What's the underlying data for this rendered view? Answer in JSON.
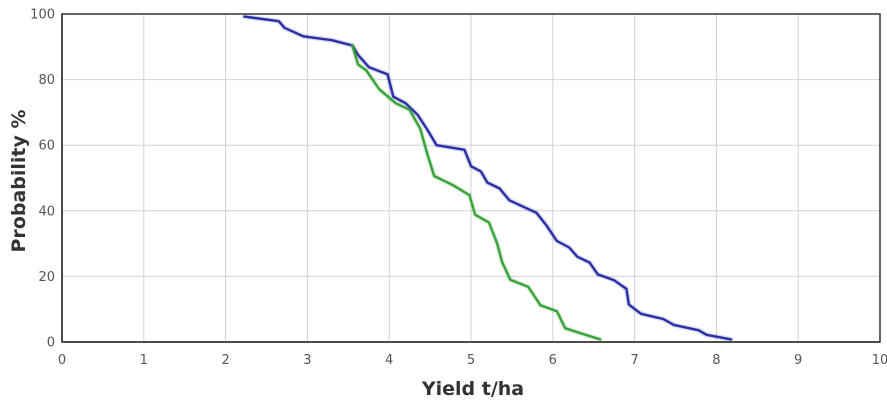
{
  "chart_data": {
    "type": "line",
    "title": "",
    "xlabel": "Yield t/ha",
    "ylabel": "Probability %",
    "xlim": [
      0,
      10
    ],
    "ylim": [
      0,
      100
    ],
    "xticks": [
      0,
      1,
      2,
      3,
      4,
      5,
      6,
      7,
      8,
      9,
      10
    ],
    "yticks": [
      0,
      20,
      40,
      60,
      80,
      100
    ],
    "grid": true,
    "legend": "none",
    "series": [
      {
        "color": "#2b2fa6",
        "points": [
          [
            2.23,
            99.2
          ],
          [
            2.65,
            97.8
          ],
          [
            2.72,
            95.8
          ],
          [
            2.95,
            93.2
          ],
          [
            3.3,
            92.0
          ],
          [
            3.55,
            90.4
          ],
          [
            3.62,
            87.5
          ],
          [
            3.75,
            83.8
          ],
          [
            3.98,
            81.6
          ],
          [
            4.05,
            74.8
          ],
          [
            4.2,
            72.8
          ],
          [
            4.35,
            69.2
          ],
          [
            4.47,
            64.6
          ],
          [
            4.58,
            60.0
          ],
          [
            4.92,
            58.6
          ],
          [
            5.0,
            53.6
          ],
          [
            5.12,
            52.0
          ],
          [
            5.2,
            48.6
          ],
          [
            5.35,
            46.8
          ],
          [
            5.47,
            43.2
          ],
          [
            5.8,
            39.4
          ],
          [
            5.92,
            35.6
          ],
          [
            6.05,
            30.8
          ],
          [
            6.2,
            28.8
          ],
          [
            6.3,
            26.0
          ],
          [
            6.45,
            24.2
          ],
          [
            6.55,
            20.6
          ],
          [
            6.75,
            18.8
          ],
          [
            6.9,
            16.2
          ],
          [
            6.93,
            11.4
          ],
          [
            7.08,
            8.6
          ],
          [
            7.35,
            7.0
          ],
          [
            7.48,
            5.2
          ],
          [
            7.78,
            3.6
          ],
          [
            7.88,
            2.2
          ],
          [
            8.18,
            0.8
          ]
        ]
      },
      {
        "color": "#3aa23a",
        "points": [
          [
            3.55,
            90.4
          ],
          [
            3.62,
            84.6
          ],
          [
            3.72,
            82.8
          ],
          [
            3.88,
            77.0
          ],
          [
            4.08,
            72.8
          ],
          [
            4.25,
            70.8
          ],
          [
            4.38,
            65.0
          ],
          [
            4.47,
            57.0
          ],
          [
            4.55,
            50.6
          ],
          [
            4.78,
            47.8
          ],
          [
            4.98,
            44.8
          ],
          [
            5.05,
            38.8
          ],
          [
            5.22,
            36.4
          ],
          [
            5.32,
            30.0
          ],
          [
            5.38,
            24.4
          ],
          [
            5.48,
            19.0
          ],
          [
            5.7,
            16.8
          ],
          [
            5.85,
            11.2
          ],
          [
            6.05,
            9.4
          ],
          [
            6.15,
            4.2
          ],
          [
            6.35,
            2.6
          ],
          [
            6.58,
            0.8
          ]
        ]
      }
    ]
  }
}
